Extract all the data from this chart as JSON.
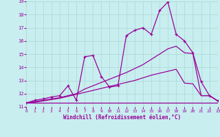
{
  "xlabel": "Windchill (Refroidissement éolien,°C)",
  "xlim": [
    0,
    23
  ],
  "ylim": [
    11,
    19
  ],
  "xticks": [
    0,
    1,
    2,
    3,
    4,
    5,
    6,
    7,
    8,
    9,
    10,
    11,
    12,
    13,
    14,
    15,
    16,
    17,
    18,
    19,
    20,
    21,
    22,
    23
  ],
  "yticks": [
    11,
    12,
    13,
    14,
    15,
    16,
    17,
    18,
    19
  ],
  "bg_color": "#c8eef0",
  "grid_color": "#aad8d0",
  "line_color": "#990099",
  "lines": [
    {
      "x": [
        0,
        1,
        2,
        3,
        4,
        5,
        6,
        7,
        8,
        9,
        10,
        11,
        12,
        13,
        14,
        15,
        16,
        17,
        18,
        19,
        20,
        21,
        22,
        23
      ],
      "y": [
        11.3,
        11.5,
        11.6,
        11.75,
        11.85,
        12.6,
        11.5,
        14.8,
        14.9,
        13.3,
        12.5,
        12.6,
        16.4,
        16.8,
        17.0,
        16.5,
        18.3,
        18.95,
        16.5,
        16.0,
        15.1,
        12.9,
        11.85,
        11.45
      ],
      "marker": "+",
      "lw": 0.9
    },
    {
      "x": [
        0,
        1,
        2,
        3,
        4,
        5,
        6,
        7,
        8,
        9,
        10,
        11,
        12,
        13,
        14,
        15,
        16,
        17,
        18,
        19,
        20,
        21,
        22,
        23
      ],
      "y": [
        11.3,
        11.4,
        11.5,
        11.6,
        11.7,
        11.85,
        12.0,
        12.35,
        12.6,
        12.85,
        13.1,
        13.35,
        13.6,
        13.9,
        14.2,
        14.6,
        15.0,
        15.4,
        15.6,
        15.1,
        15.05,
        11.85,
        11.85,
        11.45
      ],
      "marker": null,
      "lw": 0.9
    },
    {
      "x": [
        0,
        1,
        2,
        3,
        4,
        5,
        6,
        7,
        8,
        9,
        10,
        11,
        12,
        13,
        14,
        15,
        16,
        17,
        18,
        19,
        20,
        21,
        22,
        23
      ],
      "y": [
        11.3,
        11.35,
        11.45,
        11.55,
        11.65,
        11.8,
        11.95,
        12.1,
        12.25,
        12.4,
        12.55,
        12.7,
        12.85,
        13.0,
        13.2,
        13.4,
        13.55,
        13.7,
        13.85,
        12.8,
        12.75,
        11.85,
        11.85,
        11.45
      ],
      "marker": null,
      "lw": 0.9
    },
    {
      "x": [
        0,
        23
      ],
      "y": [
        11.3,
        11.3
      ],
      "marker": null,
      "lw": 0.9
    }
  ]
}
